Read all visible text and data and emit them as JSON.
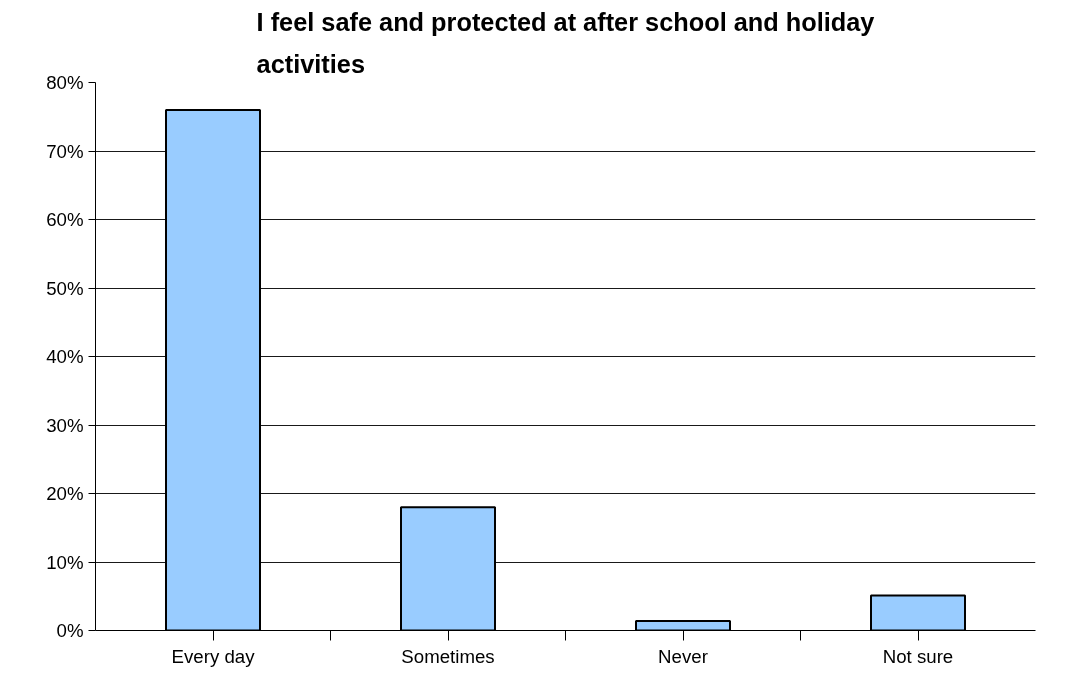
{
  "chart_data": {
    "type": "bar",
    "title": "I feel safe and protected at after school and holiday\nactivities",
    "categories": [
      "Every day",
      "Sometimes",
      "Never",
      "Not sure"
    ],
    "values": [
      76,
      18,
      1.4,
      5.1
    ],
    "color": "#99ccff",
    "ylim": [
      0,
      80
    ],
    "yticks": [
      {
        "value": 0,
        "label": "0%"
      },
      {
        "value": 10,
        "label": "10%"
      },
      {
        "value": 20,
        "label": "20%"
      },
      {
        "value": 30,
        "label": "30%"
      },
      {
        "value": 40,
        "label": "40%"
      },
      {
        "value": 50,
        "label": "50%"
      },
      {
        "value": 60,
        "label": "60%"
      },
      {
        "value": 70,
        "label": "70%"
      },
      {
        "value": 80,
        "label": "80%"
      }
    ],
    "grid": "y"
  }
}
